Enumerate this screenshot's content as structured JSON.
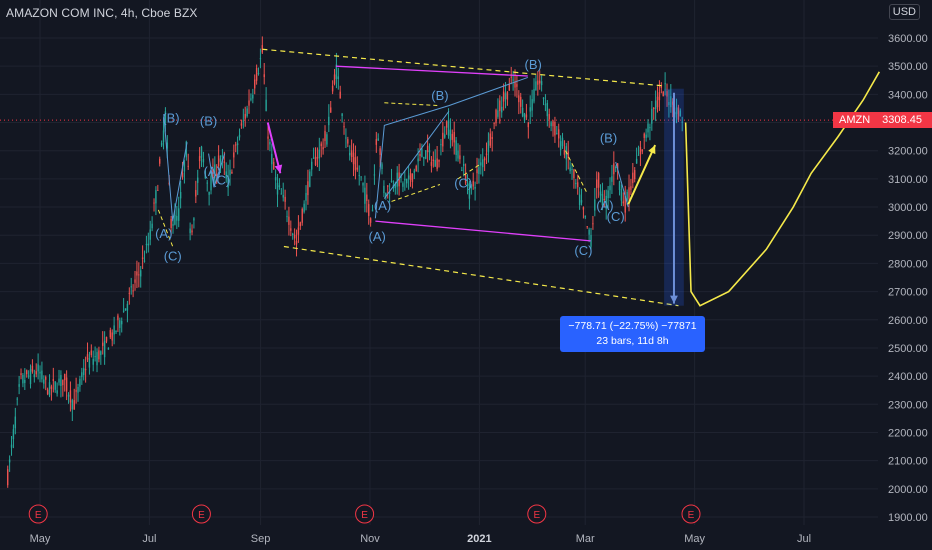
{
  "header": {
    "symbol_title": "AMAZON COM INC, 4h, Cboe BZX",
    "currency": "USD"
  },
  "price_label": {
    "ticker": "AMZN",
    "value": "3308.45"
  },
  "measure": {
    "line1": "−778.71 (−22.75%) −77871",
    "line2": "23 bars, 11d 8h"
  },
  "colors": {
    "background": "#131722",
    "up": "#26a69a",
    "down": "#ef5350",
    "dashed_yellow": "#f5e94a",
    "magenta": "#e040fb",
    "wave_blue": "#5b9bd5",
    "measure_blue": "#2962ff",
    "price_red": "#f23645",
    "forecast_yellow": "#f5e94a"
  },
  "chart_data": {
    "type": "candlestick",
    "title": "AMAZON COM INC, 4h, Cboe BZX",
    "xlabel": "",
    "ylabel": "",
    "ylim": [
      1880,
      3730
    ],
    "y_ticks": [
      1900,
      2000,
      2100,
      2200,
      2300,
      2400,
      2500,
      2600,
      2700,
      2800,
      2900,
      3000,
      3100,
      3200,
      3300,
      3400,
      3500,
      3600
    ],
    "y_tick_labels": [
      "1900.00",
      "2000.00",
      "2100.00",
      "2200.00",
      "2300.00",
      "2400.00",
      "2500.00",
      "2600.00",
      "2700.00",
      "2800.00",
      "2900.00",
      "3000.00",
      "3100.00",
      "3200.00",
      "3300.00",
      "3400.00",
      "3500.00",
      "3600.00"
    ],
    "x_ticks": [
      "May",
      "Jul",
      "Sep",
      "Nov",
      "2021",
      "Mar",
      "May",
      "Jul"
    ],
    "x_tick_dates": [
      "2020-05-01",
      "2020-07-01",
      "2020-09-01",
      "2020-11-01",
      "2021-01-01",
      "2021-03-01",
      "2021-05-01",
      "2021-07-01"
    ],
    "last_price": 3308.45,
    "price_path": [
      [
        "2020-04-13",
        2040
      ],
      [
        "2020-04-20",
        2380
      ],
      [
        "2020-04-30",
        2420
      ],
      [
        "2020-05-06",
        2350
      ],
      [
        "2020-05-14",
        2390
      ],
      [
        "2020-05-20",
        2300
      ],
      [
        "2020-05-27",
        2450
      ],
      [
        "2020-06-04",
        2480
      ],
      [
        "2020-06-12",
        2560
      ],
      [
        "2020-06-20",
        2680
      ],
      [
        "2020-06-25",
        2760
      ],
      [
        "2020-07-01",
        2880
      ],
      [
        "2020-07-06",
        3100
      ],
      [
        "2020-07-10",
        3330
      ],
      [
        "2020-07-13",
        2950
      ],
      [
        "2020-07-17",
        2960
      ],
      [
        "2020-07-22",
        3230
      ],
      [
        "2020-07-24",
        2890
      ],
      [
        "2020-07-30",
        3200
      ],
      [
        "2020-08-03",
        3070
      ],
      [
        "2020-08-10",
        3180
      ],
      [
        "2020-08-14",
        3090
      ],
      [
        "2020-08-20",
        3250
      ],
      [
        "2020-08-27",
        3400
      ],
      [
        "2020-09-02",
        3550
      ],
      [
        "2020-09-05",
        3270
      ],
      [
        "2020-09-09",
        3100
      ],
      [
        "2020-09-15",
        3000
      ],
      [
        "2020-09-21",
        2870
      ],
      [
        "2020-09-30",
        3150
      ],
      [
        "2020-10-08",
        3250
      ],
      [
        "2020-10-13",
        3500
      ],
      [
        "2020-10-20",
        3200
      ],
      [
        "2020-10-27",
        3100
      ],
      [
        "2020-11-02",
        2950
      ],
      [
        "2020-11-05",
        3300
      ],
      [
        "2020-11-09",
        3050
      ],
      [
        "2020-11-15",
        3100
      ],
      [
        "2020-11-22",
        3080
      ],
      [
        "2020-12-01",
        3200
      ],
      [
        "2020-12-08",
        3150
      ],
      [
        "2020-12-14",
        3300
      ],
      [
        "2020-12-20",
        3200
      ],
      [
        "2020-12-27",
        3050
      ],
      [
        "2021-01-05",
        3200
      ],
      [
        "2021-01-12",
        3350
      ],
      [
        "2021-01-20",
        3450
      ],
      [
        "2021-01-28",
        3300
      ],
      [
        "2021-02-03",
        3460
      ],
      [
        "2021-02-10",
        3300
      ],
      [
        "2021-02-18",
        3200
      ],
      [
        "2021-02-25",
        3050
      ],
      [
        "2021-03-04",
        2880
      ],
      [
        "2021-03-08",
        3100
      ],
      [
        "2021-03-12",
        3000
      ],
      [
        "2021-03-18",
        3160
      ],
      [
        "2021-03-23",
        3000
      ],
      [
        "2021-04-01",
        3200
      ],
      [
        "2021-04-09",
        3360
      ],
      [
        "2021-04-14",
        3420
      ],
      [
        "2021-04-20",
        3350
      ],
      [
        "2021-04-25",
        3310
      ]
    ],
    "forecast_path": [
      [
        "2021-04-26",
        3300
      ],
      [
        "2021-04-29",
        2700
      ],
      [
        "2021-05-04",
        2650
      ],
      [
        "2021-05-20",
        2700
      ],
      [
        "2021-06-10",
        2850
      ],
      [
        "2021-06-25",
        3000
      ],
      [
        "2021-07-05",
        3120
      ],
      [
        "2021-07-20",
        3250
      ],
      [
        "2021-08-03",
        3380
      ],
      [
        "2021-08-12",
        3480
      ]
    ],
    "channel_lines": [
      {
        "style": "dashed",
        "color": "yellow",
        "points": [
          [
            "2020-09-02",
            3560
          ],
          [
            "2021-04-14",
            3430
          ]
        ]
      },
      {
        "style": "dashed",
        "color": "yellow",
        "points": [
          [
            "2020-09-14",
            2860
          ],
          [
            "2021-04-22",
            2650
          ]
        ]
      }
    ],
    "magenta_lines": [
      {
        "points": [
          [
            "2020-10-13",
            3500
          ],
          [
            "2021-01-28",
            3465
          ]
        ]
      },
      {
        "points": [
          [
            "2020-11-04",
            2950
          ],
          [
            "2021-03-04",
            2880
          ]
        ]
      }
    ],
    "wave_labels": [
      {
        "text": "(B)",
        "date": "2020-07-13",
        "price": 3300
      },
      {
        "text": "(B)",
        "date": "2020-08-03",
        "price": 3290
      },
      {
        "text": "(A)",
        "date": "2020-07-09",
        "price": 2890
      },
      {
        "text": "(C)",
        "date": "2020-07-14",
        "price": 2810
      },
      {
        "text": "(A)",
        "date": "2020-08-05",
        "price": 3110
      },
      {
        "text": "(C)",
        "date": "2020-08-10",
        "price": 3080
      },
      {
        "text": "(A)",
        "date": "2020-11-08",
        "price": 2990
      },
      {
        "text": "(A)",
        "date": "2020-11-05",
        "price": 2880
      },
      {
        "text": "(B)",
        "date": "2020-12-10",
        "price": 3380
      },
      {
        "text": "(C)",
        "date": "2020-12-23",
        "price": 3070
      },
      {
        "text": "(B)",
        "date": "2021-01-31",
        "price": 3490
      },
      {
        "text": "(C)",
        "date": "2021-02-28",
        "price": 2830
      },
      {
        "text": "(B)",
        "date": "2021-03-14",
        "price": 3230
      },
      {
        "text": "(A)",
        "date": "2021-03-12",
        "price": 2990
      },
      {
        "text": "(C)",
        "date": "2021-03-18",
        "price": 2950
      }
    ],
    "measure_tool": {
      "from_date": "2021-04-14",
      "from_price": 3420,
      "to_date": "2021-04-25",
      "to_price": 2650,
      "change": -778.71,
      "change_pct": -22.75,
      "bars": 23,
      "duration": "11d 8h"
    },
    "earnings_markers_dates": [
      "2020-04-30",
      "2020-07-30",
      "2020-10-29",
      "2021-02-02",
      "2021-04-29"
    ],
    "earnings_marker_label": "E"
  }
}
